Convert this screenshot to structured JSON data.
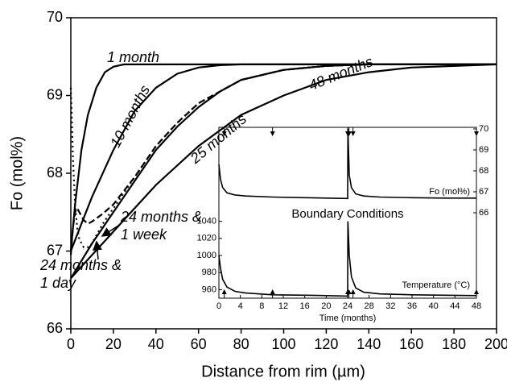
{
  "chart_data": [
    {
      "type": "line",
      "xlabel": "Distance from rim (µm)",
      "ylabel": "Fo (mol%)",
      "xlim": [
        0,
        200
      ],
      "xticks": [
        0,
        20,
        40,
        60,
        80,
        100,
        120,
        140,
        160,
        180,
        200
      ],
      "ylim": [
        66,
        70
      ],
      "yticks": [
        66,
        67,
        68,
        69,
        70
      ],
      "series": [
        {
          "name": "1 month",
          "color": "#000000",
          "dash": "solid",
          "x": [
            0,
            2,
            5,
            8,
            12,
            16,
            20,
            25,
            30,
            40,
            60,
            100,
            200
          ],
          "values": [
            67.0,
            67.6,
            68.3,
            68.75,
            69.1,
            69.3,
            69.37,
            69.4,
            69.4,
            69.4,
            69.4,
            69.4,
            69.4
          ]
        },
        {
          "name": "10 months",
          "color": "#000000",
          "dash": "solid",
          "x": [
            0,
            5,
            10,
            20,
            30,
            40,
            50,
            60,
            70,
            80,
            100,
            200
          ],
          "values": [
            67.0,
            67.35,
            67.7,
            68.3,
            68.8,
            69.1,
            69.28,
            69.36,
            69.39,
            69.4,
            69.4,
            69.4
          ]
        },
        {
          "name": "25 months",
          "color": "#000000",
          "dash": "solid",
          "x": [
            0,
            10,
            20,
            30,
            40,
            50,
            60,
            70,
            80,
            100,
            120,
            140,
            200
          ],
          "values": [
            66.65,
            67.1,
            67.5,
            67.9,
            68.3,
            68.6,
            68.85,
            69.05,
            69.2,
            69.33,
            69.38,
            69.4,
            69.4
          ]
        },
        {
          "name": "48 months",
          "color": "#000000",
          "dash": "solid",
          "x": [
            0,
            10,
            20,
            30,
            40,
            60,
            80,
            100,
            120,
            140,
            160,
            200
          ],
          "values": [
            66.65,
            66.95,
            67.25,
            67.55,
            67.85,
            68.35,
            68.75,
            69.0,
            69.2,
            69.3,
            69.36,
            69.4
          ]
        },
        {
          "name": "24 months & 1 week",
          "color": "#000000",
          "dash": "dashed",
          "x": [
            0,
            1,
            2,
            3,
            4,
            6,
            8,
            10,
            12,
            15,
            20,
            30,
            40,
            50,
            60,
            80,
            100,
            120,
            140,
            200
          ],
          "values": [
            66.95,
            67.3,
            67.5,
            67.55,
            67.5,
            67.4,
            67.35,
            67.38,
            67.42,
            67.48,
            67.6,
            67.95,
            68.35,
            68.65,
            68.9,
            69.2,
            69.33,
            69.38,
            69.4,
            69.4
          ]
        },
        {
          "name": "24 months & 1 day",
          "color": "#000000",
          "dash": "dotted",
          "x": [
            0,
            0.5,
            1,
            2,
            3,
            4,
            6,
            8,
            10,
            12,
            15,
            20,
            30,
            40,
            50,
            60,
            80,
            100,
            120,
            140,
            200
          ],
          "values": [
            69.1,
            68.7,
            68.2,
            67.6,
            67.3,
            67.15,
            67.05,
            67.05,
            67.1,
            67.2,
            67.35,
            67.55,
            67.95,
            68.35,
            68.65,
            68.9,
            69.2,
            69.33,
            69.38,
            69.4,
            69.4
          ]
        }
      ]
    },
    {
      "type": "line",
      "title": "Boundary Conditions",
      "xlabel": "Time (months)",
      "xlim": [
        0,
        48
      ],
      "xticks": [
        0,
        4,
        8,
        12,
        16,
        20,
        24,
        28,
        32,
        36,
        40,
        44,
        48
      ],
      "ylim": [
        950,
        1050
      ],
      "yticks": [
        960,
        980,
        1000,
        1020,
        1040
      ],
      "y2lim": [
        66,
        70
      ],
      "y2ticks": [
        66,
        67,
        68,
        69,
        70
      ],
      "marker_times": [
        1,
        10,
        24,
        24.25,
        25,
        48
      ],
      "series": [
        {
          "name": "Fo (mol%)",
          "axis": "y2",
          "color": "#000000",
          "x": [
            0,
            0.3,
            0.7,
            1.5,
            3,
            5,
            10,
            16,
            20,
            24,
            24.05,
            24.3,
            24.7,
            25.5,
            27,
            30,
            36,
            42,
            48
          ],
          "values": [
            68.3,
            67.6,
            67.2,
            66.95,
            66.85,
            66.8,
            66.75,
            66.72,
            66.7,
            66.68,
            70,
            67.8,
            67.2,
            66.9,
            66.8,
            66.75,
            66.72,
            66.7,
            66.7
          ]
        },
        {
          "name": "Temperature (°C)",
          "axis": "y",
          "color": "#000000",
          "x": [
            0,
            0.3,
            0.7,
            1.5,
            3,
            5,
            10,
            16,
            20,
            24,
            24.05,
            24.3,
            24.7,
            25.5,
            27,
            30,
            36,
            42,
            48
          ],
          "values": [
            1000,
            985,
            972,
            963,
            958,
            956,
            954,
            953.5,
            953,
            952.5,
            1040,
            1000,
            975,
            962,
            957,
            955,
            954,
            953.5,
            953
          ]
        }
      ]
    }
  ]
}
